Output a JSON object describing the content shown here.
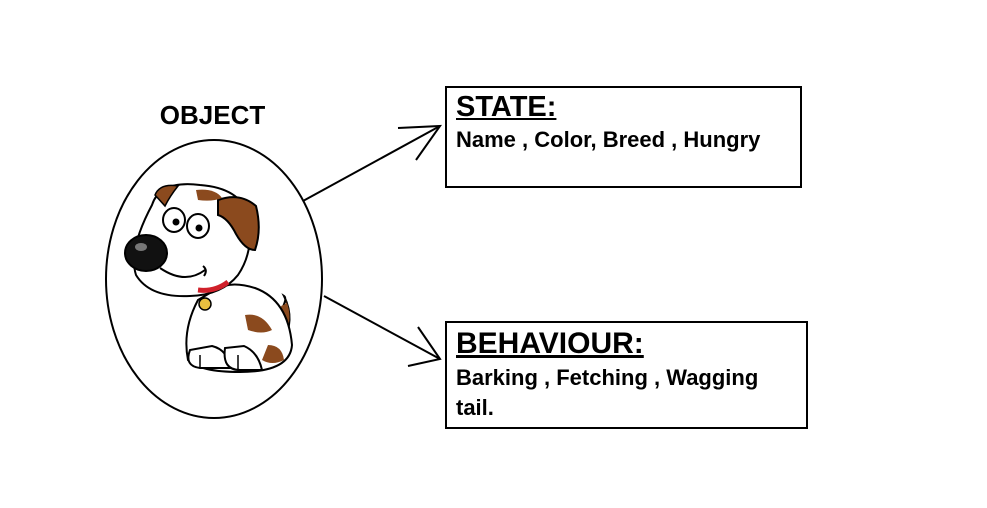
{
  "object": {
    "title": "OBJECT",
    "illustration": "dog-illustration"
  },
  "state": {
    "heading": "STATE:",
    "text": "Name , Color, Breed , Hungry"
  },
  "behaviour": {
    "heading": "BEHAVIOUR:",
    "text": "Barking , Fetching , Wagging tail."
  },
  "colors": {
    "line": "#000000",
    "dog_patch": "#8B4A1E",
    "collar": "#D0202A",
    "tag": "#E8C040",
    "background": "#FFFFFF"
  }
}
